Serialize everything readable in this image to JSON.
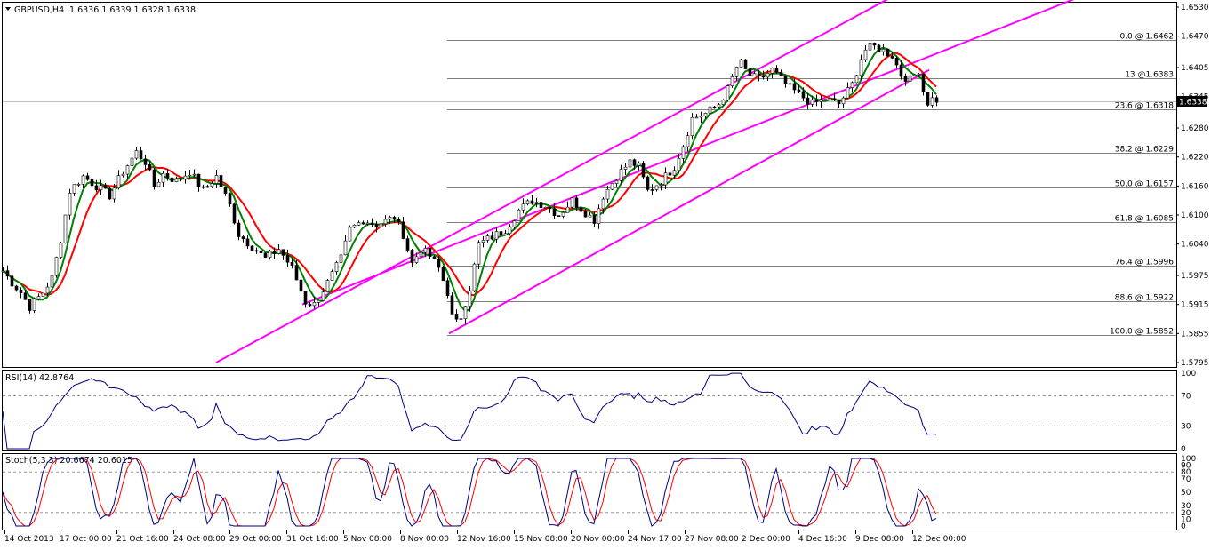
{
  "header": {
    "symbol": "GBPUSD,H4",
    "ohlc": "1.6336 1.6339 1.6328 1.6338"
  },
  "rsi": {
    "label": "RSI(14) 42.8764",
    "levels": [
      70,
      30
    ],
    "ticks": [
      "100",
      "70",
      "30",
      "0"
    ],
    "range": [
      0,
      100
    ]
  },
  "stoch": {
    "label": "Stoch(5,3,3) 20.6674 20.6015",
    "ticks": [
      "100",
      "90",
      "80",
      "70",
      "50",
      "30",
      "20",
      "10",
      "0"
    ],
    "levels": [
      80,
      20
    ],
    "range": [
      0,
      100
    ]
  },
  "colors": {
    "candle": "#000000",
    "channel": "#ff00ff",
    "ma_fast": "#008000",
    "ma_slow": "#ff0000",
    "ma_cross": "#ffff00",
    "rsi_line": "#000080",
    "stoch_main": "#000080",
    "stoch_signal": "#ff0000",
    "fib_line": "#7f7f7f",
    "price_tag_bg": "#000000",
    "price_tag_fg": "#ffffff"
  },
  "chart_data": {
    "type": "candlestick",
    "title": "GBPUSD,H4",
    "ylim": [
      1.5795,
      1.653
    ],
    "price_ticks": [
      "1.6530",
      "1.6470",
      "1.6405",
      "1.6345",
      "1.6280",
      "1.6220",
      "1.6160",
      "1.6100",
      "1.6040",
      "1.5975",
      "1.5915",
      "1.5855",
      "1.5795"
    ],
    "current_price": "1.6338",
    "x_ticks": [
      "14 Oct 2013",
      "17 Oct 00:00",
      "21 Oct 16:00",
      "24 Oct 08:00",
      "29 Oct 00:00",
      "31 Oct 16:00",
      "5 Nov 08:00",
      "8 Nov 00:00",
      "12 Nov 16:00",
      "15 Nov 08:00",
      "20 Nov 00:00",
      "24 Nov 17:00",
      "27 Nov 08:00",
      "2 Dec 00:00",
      "4 Dec 16:00",
      "9 Dec 08:00",
      "12 Dec 00:00"
    ],
    "fibonacci": [
      {
        "label": "0.0 @ 1.6462",
        "price": 1.6462
      },
      {
        "label": "13 @1.6383",
        "price": 1.6383
      },
      {
        "label": "23.6 @ 1.6318",
        "price": 1.6318
      },
      {
        "label": "38.2 @ 1.6229",
        "price": 1.6229
      },
      {
        "label": "50.0 @ 1.6157",
        "price": 1.6157
      },
      {
        "label": "61.8 @ 1.6085",
        "price": 1.6085
      },
      {
        "label": "76.4 @ 1.5996",
        "price": 1.5996
      },
      {
        "label": "88.6 @ 1.5922",
        "price": 1.5922
      },
      {
        "label": "100.0 @ 1.5852",
        "price": 1.5852
      }
    ],
    "price_anchors": [
      [
        0,
        1.5985
      ],
      [
        10,
        1.596
      ],
      [
        20,
        1.594
      ],
      [
        30,
        1.591
      ],
      [
        45,
        1.594
      ],
      [
        55,
        1.597
      ],
      [
        65,
        1.605
      ],
      [
        75,
        1.615
      ],
      [
        90,
        1.618
      ],
      [
        105,
        1.616
      ],
      [
        120,
        1.614
      ],
      [
        135,
        1.619
      ],
      [
        150,
        1.623
      ],
      [
        160,
        1.621
      ],
      [
        170,
        1.616
      ],
      [
        180,
        1.6185
      ],
      [
        195,
        1.617
      ],
      [
        210,
        1.619
      ],
      [
        225,
        1.615
      ],
      [
        240,
        1.618
      ],
      [
        255,
        1.612
      ],
      [
        265,
        1.606
      ],
      [
        280,
        1.6035
      ],
      [
        295,
        1.601
      ],
      [
        310,
        1.603
      ],
      [
        325,
        1.599
      ],
      [
        340,
        1.592
      ],
      [
        350,
        1.5915
      ],
      [
        365,
        1.596
      ],
      [
        380,
        1.601
      ],
      [
        390,
        1.607
      ],
      [
        405,
        1.609
      ],
      [
        420,
        1.608
      ],
      [
        440,
        1.6095
      ],
      [
        450,
        1.606
      ],
      [
        460,
        1.6
      ],
      [
        470,
        1.603
      ],
      [
        480,
        1.6015
      ],
      [
        490,
        1.599
      ],
      [
        500,
        1.594
      ],
      [
        507,
        1.587
      ],
      [
        515,
        1.589
      ],
      [
        525,
        1.595
      ],
      [
        535,
        1.604
      ],
      [
        550,
        1.6055
      ],
      [
        565,
        1.607
      ],
      [
        580,
        1.611
      ],
      [
        595,
        1.613
      ],
      [
        610,
        1.612
      ],
      [
        625,
        1.61
      ],
      [
        640,
        1.613
      ],
      [
        655,
        1.6105
      ],
      [
        665,
        1.609
      ],
      [
        675,
        1.614
      ],
      [
        690,
        1.618
      ],
      [
        705,
        1.621
      ],
      [
        715,
        1.62
      ],
      [
        725,
        1.615
      ],
      [
        740,
        1.617
      ],
      [
        755,
        1.62
      ],
      [
        765,
        1.6245
      ],
      [
        775,
        1.63
      ],
      [
        790,
        1.631
      ],
      [
        805,
        1.633
      ],
      [
        815,
        1.636
      ],
      [
        828,
        1.642
      ],
      [
        838,
        1.639
      ],
      [
        850,
        1.638
      ],
      [
        865,
        1.64
      ],
      [
        880,
        1.637
      ],
      [
        895,
        1.635
      ],
      [
        910,
        1.633
      ],
      [
        925,
        1.634
      ],
      [
        940,
        1.633
      ],
      [
        955,
        1.637
      ],
      [
        968,
        1.644
      ],
      [
        978,
        1.645
      ],
      [
        990,
        1.644
      ],
      [
        1000,
        1.643
      ],
      [
        1010,
        1.639
      ],
      [
        1020,
        1.638
      ],
      [
        1030,
        1.64
      ],
      [
        1038,
        1.633
      ],
      [
        1045,
        1.634
      ],
      [
        1050,
        1.6338
      ]
    ],
    "channel_lines": [
      {
        "x1": 243,
        "y1": 1.5795,
        "x2": 1000,
        "y2": 1.6548
      },
      {
        "x1": 340,
        "y1": 1.5915,
        "x2": 1210,
        "y2": 1.6548
      },
      {
        "x1": 505,
        "y1": 1.5855,
        "x2": 1045,
        "y2": 1.64
      }
    ]
  }
}
